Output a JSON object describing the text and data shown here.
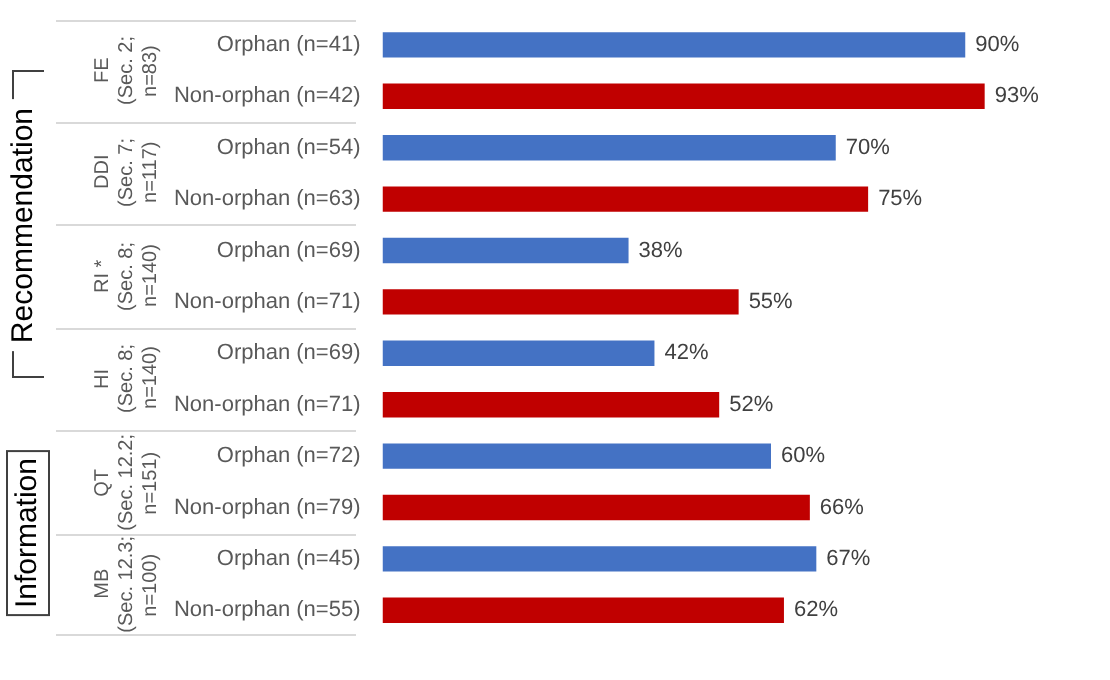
{
  "chart_data": {
    "type": "bar",
    "orientation": "horizontal",
    "categories": [
      "Orphan (n=41)",
      "Non-orphan (n=42)",
      "Orphan (n=54)",
      "Non-orphan (n=63)",
      "Orphan (n=69)",
      "Non-orphan (n=71)",
      "Orphan (n=69)",
      "Non-orphan (n=71)",
      "Orphan (n=72)",
      "Non-orphan (n=79)",
      "Orphan (n=45)",
      "Non-orphan (n=55)"
    ],
    "values": [
      90,
      93,
      70,
      75,
      38,
      55,
      42,
      52,
      60,
      66,
      67,
      62
    ],
    "colors": [
      "#4472c4",
      "#c00000",
      "#4472c4",
      "#c00000",
      "#4472c4",
      "#c00000",
      "#4472c4",
      "#c00000",
      "#4472c4",
      "#c00000",
      "#4472c4",
      "#c00000"
    ],
    "value_labels": [
      "90%",
      "93%",
      "70%",
      "75%",
      "38%",
      "55%",
      "42%",
      "52%",
      "60%",
      "66%",
      "67%",
      "62%"
    ],
    "tick_labels": "y",
    "grid": false,
    "legend": false,
    "annotations": [
      "FE\n(Sec. 2;\nn=83)",
      "DDI\n(Sec. 7;\nn=117)",
      "RI *\n(Sec. 8;\nn=140)",
      "HI\n(Sec. 8;\nn=140)",
      "QT\n(Sec. 12.2;\nn=151)",
      "MB\n(Sec. 12.3;\nn=100)",
      "Recommendation",
      "Information"
    ]
  }
}
